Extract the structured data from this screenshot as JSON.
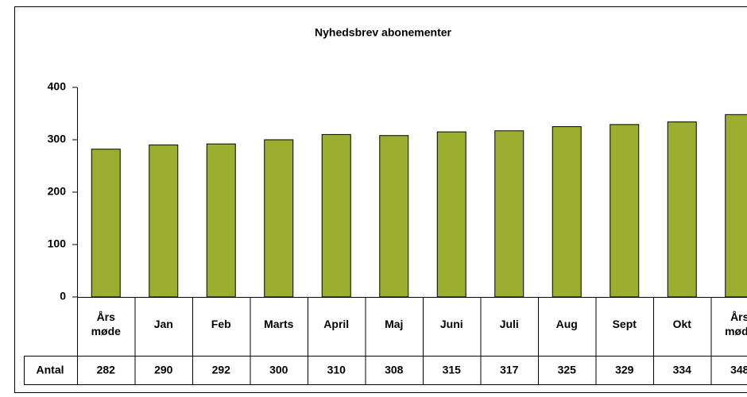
{
  "chart_data": {
    "type": "bar",
    "title": "Nyhedsbrev abonementer",
    "categories": [
      "Års møde",
      "Jan",
      "Feb",
      "Marts",
      "April",
      "Maj",
      "Juni",
      "Juli",
      "Aug",
      "Sept",
      "Okt",
      "Års møde"
    ],
    "series": [
      {
        "name": "Antal",
        "color": "#9bae2e",
        "values": [
          282,
          290,
          292,
          300,
          310,
          308,
          315,
          317,
          325,
          329,
          334,
          348
        ]
      }
    ],
    "ylim": [
      0,
      400
    ],
    "yticks": [
      0,
      100,
      200,
      300,
      400
    ],
    "grid": false
  }
}
